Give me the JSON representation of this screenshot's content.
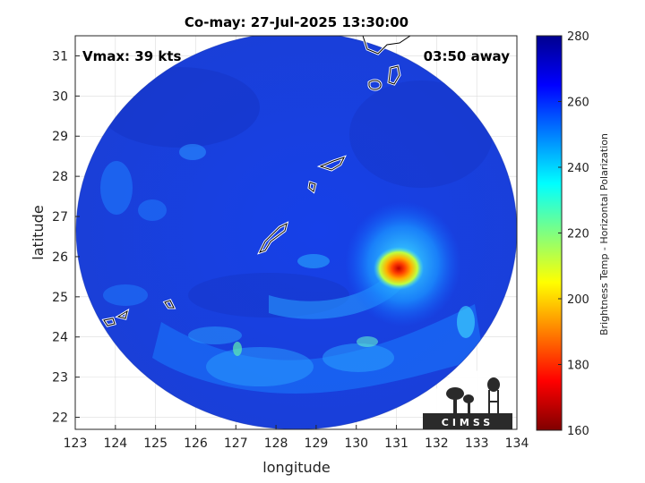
{
  "title": "Co-may: 27-Jul-2025 13:30:00",
  "annotations": {
    "vmax": "Vmax: 39 kts",
    "away": "03:50 away"
  },
  "axes": {
    "xlabel": "longitude",
    "ylabel": "latitude",
    "x_ticks": [
      "123",
      "124",
      "125",
      "126",
      "127",
      "128",
      "129",
      "130",
      "131",
      "132",
      "133",
      "134"
    ],
    "y_ticks": [
      "22",
      "23",
      "24",
      "25",
      "26",
      "27",
      "28",
      "29",
      "30",
      "31"
    ],
    "xlim": [
      123,
      134
    ],
    "ylim": [
      21.7,
      31.5
    ]
  },
  "colorbar": {
    "label": "Brightness Temp - Horizontal Polarization",
    "ticks": [
      "160",
      "180",
      "200",
      "220",
      "240",
      "260",
      "280"
    ],
    "range": [
      160,
      280
    ],
    "colormap": [
      "#800000",
      "#ff0000",
      "#ff8000",
      "#ffff00",
      "#80ff80",
      "#00ffff",
      "#0080ff",
      "#0000ff",
      "#00008f"
    ]
  },
  "map": {
    "swath_center": [
      128.6,
      26.0
    ],
    "background_temp_k": 268,
    "storm_center": [
      131.1,
      25.7
    ],
    "coastlines_color": "#ffffff"
  },
  "logo": {
    "text": "CIMSS"
  }
}
